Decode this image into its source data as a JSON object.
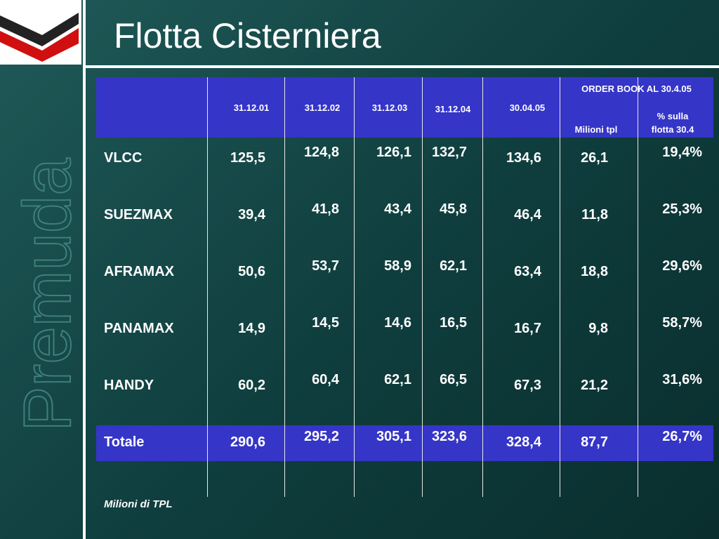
{
  "title": "Flotta Cisterniera",
  "brand": "Premuda",
  "table": {
    "headers": [
      "31.12.01",
      "31.12.02",
      "31.12.03",
      "31.12.04",
      "30.04.05"
    ],
    "order_book": {
      "title": "ORDER BOOK AL 30.4.05",
      "columns": [
        "Milioni tpl",
        "% sulla flotta 30.4"
      ]
    },
    "rows": [
      [
        "VLCC",
        "125,5",
        "124,8",
        "126,1",
        "132,7",
        "134,6",
        "26,1",
        "19,4%"
      ],
      [
        "SUEZMAX",
        "39,4",
        "41,8",
        "43,4",
        "45,8",
        "46,4",
        "11,8",
        "25,3%"
      ],
      [
        "AFRAMAX",
        "50,6",
        "53,7",
        "58,9",
        "62,1",
        "63,4",
        "18,8",
        "29,6%"
      ],
      [
        "PANAMAX",
        "14,9",
        "14,5",
        "14,6",
        "16,5",
        "16,7",
        "9,8",
        "58,7%"
      ],
      [
        "HANDY",
        "60,2",
        "60,4",
        "62,1",
        "66,5",
        "67,3",
        "21,2",
        "31,6%"
      ]
    ],
    "total": [
      "Totale",
      "290,6",
      "295,2",
      "305,1",
      "323,6",
      "328,4",
      "87,7",
      "26,7%"
    ]
  },
  "footnote": "Milioni di TPL"
}
